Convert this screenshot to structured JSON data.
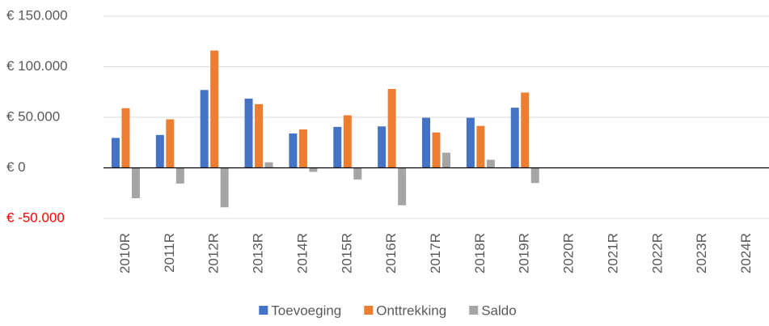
{
  "chart_data": {
    "type": "bar",
    "categories": [
      "2010R",
      "2011R",
      "2012R",
      "2013R",
      "2014R",
      "2015R",
      "2016R",
      "2017R",
      "2018R",
      "2019R",
      "2020R",
      "2021R",
      "2022R",
      "2023R",
      "2024R"
    ],
    "series": [
      {
        "name": "Toevoeging",
        "color": "#4472c4",
        "values": [
          29600,
          32500,
          77000,
          68500,
          34000,
          40500,
          41000,
          49500,
          49500,
          59500,
          null,
          null,
          null,
          null,
          null
        ]
      },
      {
        "name": "Onttrekking",
        "color": "#ed7d31",
        "values": [
          59000,
          48000,
          116000,
          63000,
          38000,
          52000,
          78000,
          35000,
          41500,
          74500,
          null,
          null,
          null,
          null,
          null
        ]
      },
      {
        "name": "Saldo",
        "color": "#a5a5a5",
        "values": [
          -30000,
          -15500,
          -39000,
          5500,
          -4000,
          -11500,
          -37000,
          15000,
          8000,
          -15000,
          null,
          null,
          null,
          null,
          null
        ]
      }
    ],
    "ylim": [
      -50000,
      150000
    ],
    "yticks": [
      {
        "value": -50000,
        "label": "€ -50.000"
      },
      {
        "value": 0,
        "label": "€ 0"
      },
      {
        "value": 50000,
        "label": "€ 50.000"
      },
      {
        "value": 100000,
        "label": "€ 100.000"
      },
      {
        "value": 150000,
        "label": "€ 150.000"
      }
    ],
    "negative_tick_color": "#ff0000",
    "grid": true,
    "legend": "bottom"
  }
}
